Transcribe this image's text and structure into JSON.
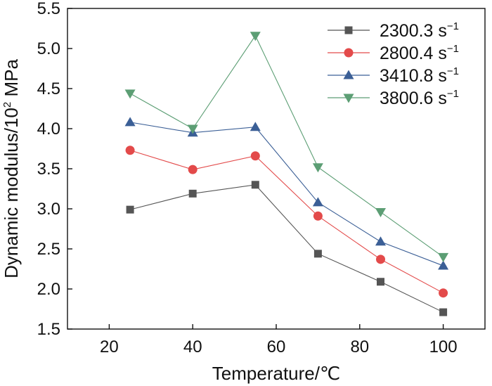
{
  "chart_data": {
    "type": "line",
    "title": "",
    "xlabel": "Temperature/℃",
    "ylabel_main": "Dynamic modulus/10",
    "ylabel_sup": "2",
    "ylabel_unit": " MPa",
    "xlim": [
      10,
      110
    ],
    "ylim": [
      1.5,
      5.5
    ],
    "xticks": [
      20,
      40,
      60,
      80,
      100
    ],
    "xtick_labels": [
      "20",
      "40",
      "60",
      "80",
      "100"
    ],
    "yticks": [
      1.5,
      2.0,
      2.5,
      3.0,
      3.5,
      4.0,
      4.5,
      5.0,
      5.5
    ],
    "ytick_labels": [
      "1.5",
      "2.0",
      "2.5",
      "3.0",
      "3.5",
      "4.0",
      "4.5",
      "5.0",
      "5.5"
    ],
    "grid": false,
    "legend_position": "top-right",
    "x": [
      25,
      40,
      55,
      70,
      85,
      100
    ],
    "series": [
      {
        "name": "2300.3 s",
        "unit_exp": "−1",
        "marker": "square",
        "color": "#555555",
        "values": [
          2.99,
          3.19,
          3.3,
          2.44,
          2.09,
          1.71
        ]
      },
      {
        "name": "2800.4 s",
        "unit_exp": "−1",
        "marker": "circle",
        "color": "#e34a4a",
        "values": [
          3.73,
          3.49,
          3.66,
          2.91,
          2.37,
          1.95
        ]
      },
      {
        "name": "3410.8 s",
        "unit_exp": "−1",
        "marker": "triangle-up",
        "color": "#3b5f96",
        "values": [
          4.08,
          3.95,
          4.02,
          3.08,
          2.59,
          2.29
        ]
      },
      {
        "name": "3800.6 s",
        "unit_exp": "−1",
        "marker": "triangle-down",
        "color": "#5c9e74",
        "values": [
          4.44,
          4.0,
          5.16,
          3.52,
          2.96,
          2.4
        ]
      }
    ]
  }
}
